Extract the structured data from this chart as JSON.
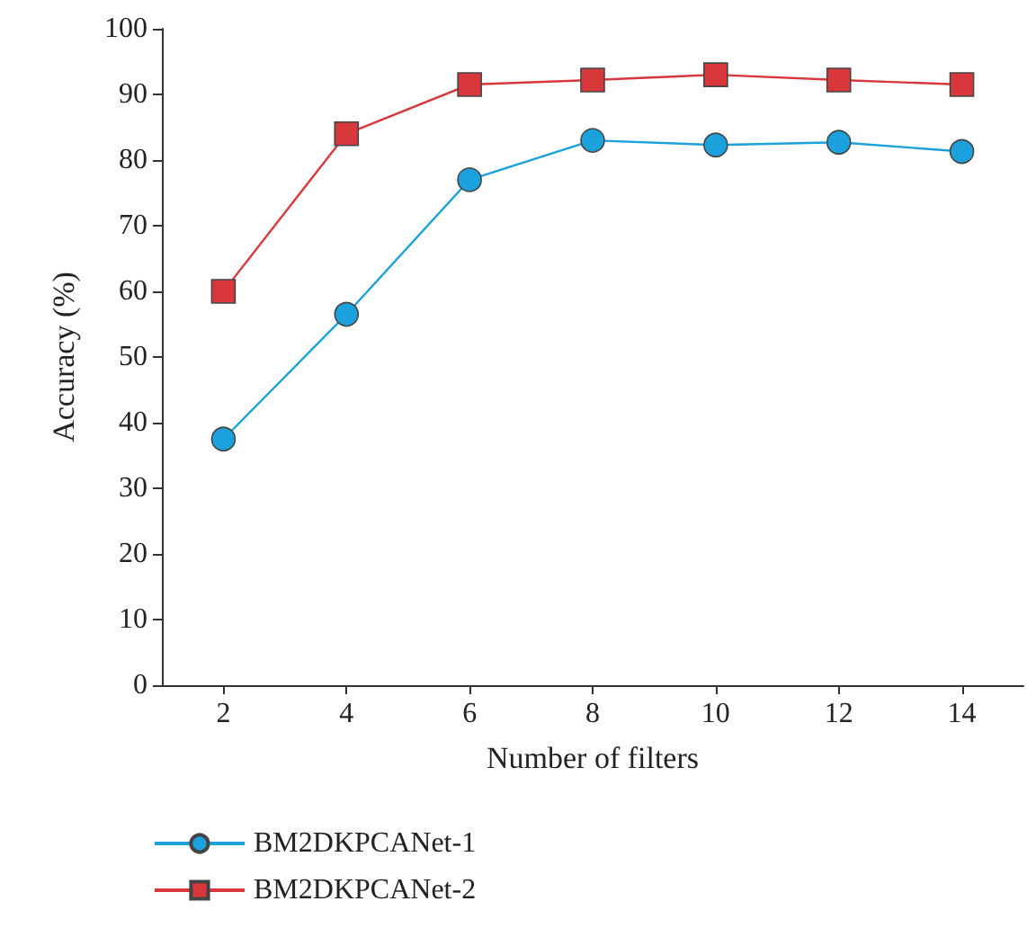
{
  "chart_data": {
    "type": "line",
    "xlabel": "Number of filters",
    "ylabel": "Accuracy (%)",
    "x": [
      2,
      4,
      6,
      8,
      10,
      12,
      14
    ],
    "xlim": [
      1,
      15
    ],
    "xticks": [
      2,
      4,
      6,
      8,
      10,
      12,
      14
    ],
    "ylim": [
      0,
      100
    ],
    "yticks": [
      0,
      10,
      20,
      30,
      40,
      50,
      60,
      70,
      80,
      90,
      100
    ],
    "series": [
      {
        "name": "BM2DKPCANet-1",
        "color": "#1ba1dc",
        "marker": "circle",
        "values": [
          37.5,
          56.5,
          77,
          83,
          82.3,
          82.7,
          81.3
        ]
      },
      {
        "name": "BM2DKPCANet-2",
        "color": "#d8383c",
        "marker": "square",
        "values": [
          60,
          84,
          91.5,
          92.2,
          93,
          92.2,
          91.5
        ]
      }
    ],
    "grid": false,
    "legend": "bottom left",
    "line_style": "solid"
  }
}
